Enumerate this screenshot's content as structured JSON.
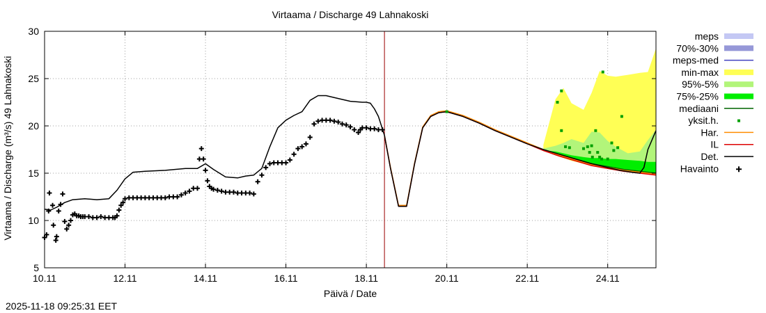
{
  "timestamp": "2025-11-18 09:25:31 EET",
  "chart_data": {
    "type": "line",
    "title": "Virtaama / Discharge  49 Lahnakoski",
    "xlabel": "Päivä / Date",
    "ylabel": "Virtaama / Discharge (m³/s)  49 Lahnakoski",
    "xlim": [
      10.0,
      25.2
    ],
    "ylim": [
      5,
      30
    ],
    "yticks": [
      5,
      10,
      15,
      20,
      25,
      30
    ],
    "xticks": [
      {
        "value": 10.0,
        "label": "10.11"
      },
      {
        "value": 12.0,
        "label": "12.11"
      },
      {
        "value": 14.0,
        "label": "14.11"
      },
      {
        "value": 16.0,
        "label": "16.11"
      },
      {
        "value": 18.0,
        "label": "18.11"
      },
      {
        "value": 20.0,
        "label": "20.11"
      },
      {
        "value": 22.0,
        "label": "22.11"
      },
      {
        "value": 24.0,
        "label": "24.11"
      }
    ],
    "grid": true,
    "now_line": 18.45,
    "legend": [
      {
        "label": "meps",
        "kind": "box",
        "color": "#c4c8f4"
      },
      {
        "label": "70%-30%",
        "kind": "box",
        "color": "#9698d8"
      },
      {
        "label": "meps-med",
        "kind": "line",
        "color": "#4040c0"
      },
      {
        "label": "min-max",
        "kind": "box",
        "color": "#ffff55"
      },
      {
        "label": "95%-5%",
        "kind": "box",
        "color": "#b2f57a"
      },
      {
        "label": "75%-25%",
        "kind": "box",
        "color": "#00ee00"
      },
      {
        "label": "mediaani",
        "kind": "line",
        "color": "#006400"
      },
      {
        "label": "yksit.h.",
        "kind": "dot",
        "color": "#00a000"
      },
      {
        "label": "Har.",
        "kind": "line",
        "color": "#ff8c00"
      },
      {
        "label": "IL",
        "kind": "line",
        "color": "#dd0000"
      },
      {
        "label": "Det.",
        "kind": "line",
        "color": "#000000"
      },
      {
        "label": "Havainto",
        "kind": "plus",
        "color": "#000000"
      }
    ],
    "series": [
      {
        "name": "Det.",
        "x": [
          10.0,
          10.15,
          10.3,
          10.5,
          10.7,
          11.0,
          11.3,
          11.6,
          11.8,
          12.0,
          12.2,
          12.5,
          13.0,
          13.5,
          13.8,
          14.0,
          14.2,
          14.5,
          14.8,
          15.0,
          15.2,
          15.4,
          15.6,
          15.8,
          16.0,
          16.2,
          16.4,
          16.6,
          16.8,
          17.0,
          17.3,
          17.6,
          17.9,
          18.0,
          18.1,
          18.2,
          18.3,
          18.45,
          18.6,
          18.8,
          19.0,
          19.2,
          19.4,
          19.6,
          19.8,
          20.0,
          20.4,
          20.8,
          21.2,
          21.6,
          22.0,
          22.4,
          22.8,
          23.2,
          23.6,
          24.0,
          24.3,
          24.6,
          24.8,
          24.9,
          25.0,
          25.2
        ],
        "values": [
          11.2,
          11.1,
          11.4,
          11.9,
          12.2,
          12.3,
          12.2,
          12.3,
          13.2,
          14.4,
          15.1,
          15.2,
          15.3,
          15.5,
          15.5,
          16.0,
          15.4,
          14.6,
          14.5,
          14.7,
          14.8,
          15.5,
          17.8,
          19.8,
          20.6,
          21.1,
          21.5,
          22.7,
          23.2,
          23.2,
          22.9,
          22.6,
          22.5,
          22.5,
          22.4,
          21.8,
          21.0,
          19.0,
          15.5,
          11.5,
          11.5,
          16.0,
          19.8,
          21.0,
          21.4,
          21.5,
          21.0,
          20.3,
          19.5,
          18.8,
          18.1,
          17.5,
          17.0,
          16.5,
          16.0,
          15.6,
          15.3,
          15.1,
          15.0,
          15.6,
          17.5,
          19.5
        ]
      },
      {
        "name": "IL",
        "x": [
          18.45,
          18.6,
          18.8,
          19.0,
          19.2,
          19.4,
          19.6,
          19.8,
          20.0,
          20.4,
          20.8,
          21.2,
          21.6,
          22.0,
          22.4,
          22.8,
          23.2,
          23.6,
          24.0,
          24.4,
          24.8,
          25.2
        ],
        "values": [
          19.0,
          15.5,
          11.5,
          11.5,
          16.0,
          19.8,
          21.0,
          21.4,
          21.5,
          21.0,
          20.3,
          19.5,
          18.8,
          18.1,
          17.4,
          16.8,
          16.3,
          15.8,
          15.5,
          15.2,
          15.0,
          14.8
        ]
      },
      {
        "name": "Har.",
        "x": [
          18.45,
          18.6,
          18.8,
          19.0,
          19.2,
          19.4,
          19.6,
          19.8,
          20.0,
          20.4,
          20.8,
          21.2,
          21.6,
          22.0,
          22.4,
          22.8,
          23.2,
          23.6,
          24.0,
          24.4,
          24.8,
          25.2
        ],
        "values": [
          19.0,
          15.6,
          11.6,
          11.6,
          16.1,
          19.9,
          21.1,
          21.5,
          21.6,
          21.1,
          20.4,
          19.6,
          18.9,
          18.2,
          17.5,
          16.9,
          16.4,
          15.9,
          15.6,
          15.3,
          15.1,
          14.9
        ]
      },
      {
        "name": "mediaani",
        "x": [
          22.4,
          22.8,
          23.2,
          23.6,
          24.0,
          24.4,
          24.8,
          25.2
        ],
        "values": [
          17.4,
          16.9,
          16.4,
          16.0,
          15.7,
          15.4,
          15.2,
          15.0
        ]
      }
    ],
    "bands": [
      {
        "name": "min-max",
        "x": [
          22.4,
          22.7,
          22.9,
          23.1,
          23.4,
          23.6,
          23.8,
          24.0,
          24.2,
          24.5,
          24.8,
          25.0,
          25.2
        ],
        "low": [
          17.4,
          16.9,
          16.6,
          16.3,
          16.0,
          15.9,
          15.7,
          15.5,
          15.3,
          15.1,
          15.0,
          14.9,
          14.8
        ],
        "high": [
          18.0,
          22.8,
          24.0,
          22.4,
          21.7,
          23.5,
          25.8,
          25.3,
          25.2,
          25.4,
          25.6,
          25.7,
          28.2
        ]
      },
      {
        "name": "95%-5%",
        "x": [
          22.4,
          22.7,
          22.9,
          23.1,
          23.4,
          23.6,
          23.8,
          24.0,
          24.2,
          24.5,
          24.8,
          25.0,
          25.2
        ],
        "low": [
          17.4,
          16.9,
          16.7,
          16.4,
          16.1,
          16.0,
          15.8,
          15.6,
          15.4,
          15.2,
          15.1,
          15.0,
          14.9
        ],
        "high": [
          17.6,
          17.9,
          18.2,
          18.6,
          18.2,
          19.4,
          19.3,
          18.4,
          17.8,
          17.1,
          17.3,
          18.5,
          19.6
        ]
      },
      {
        "name": "75%-25%",
        "x": [
          22.4,
          22.7,
          22.9,
          23.1,
          23.4,
          23.6,
          23.8,
          24.0,
          24.2,
          24.5,
          24.8,
          25.0,
          25.2
        ],
        "low": [
          17.4,
          16.9,
          16.7,
          16.5,
          16.2,
          16.0,
          15.9,
          15.7,
          15.5,
          15.3,
          15.2,
          15.0,
          14.9
        ],
        "high": [
          17.4,
          17.3,
          17.1,
          16.9,
          16.7,
          16.6,
          16.6,
          16.5,
          16.5,
          16.4,
          16.3,
          16.2,
          16.2
        ]
      }
    ],
    "scatter": {
      "name": "yksit.h.",
      "x": [
        20.0,
        22.75,
        22.85,
        22.85,
        22.95,
        23.05,
        23.4,
        23.5,
        23.55,
        23.6,
        23.62,
        23.7,
        23.75,
        23.8,
        23.85,
        23.88,
        24.0,
        24.1,
        24.15,
        24.25,
        24.35
      ],
      "y": [
        21.5,
        22.5,
        23.7,
        19.5,
        17.8,
        17.7,
        17.6,
        17.8,
        17.2,
        17.9,
        16.7,
        19.5,
        17.2,
        16.7,
        16.5,
        25.7,
        16.5,
        18.2,
        17.4,
        17.7,
        21.0
      ]
    },
    "observations": {
      "name": "Havainto",
      "x": [
        10.0,
        10.05,
        10.1,
        10.12,
        10.2,
        10.22,
        10.28,
        10.3,
        10.35,
        10.4,
        10.45,
        10.5,
        10.55,
        10.6,
        10.65,
        10.7,
        10.75,
        10.8,
        10.85,
        10.9,
        10.95,
        11.0,
        11.1,
        11.2,
        11.3,
        11.4,
        11.5,
        11.6,
        11.7,
        11.75,
        11.8,
        11.85,
        11.9,
        11.95,
        12.0,
        12.1,
        12.2,
        12.3,
        12.4,
        12.5,
        12.6,
        12.7,
        12.8,
        12.9,
        13.0,
        13.1,
        13.2,
        13.3,
        13.4,
        13.5,
        13.6,
        13.7,
        13.8,
        13.85,
        13.9,
        13.95,
        14.0,
        14.05,
        14.1,
        14.15,
        14.2,
        14.3,
        14.4,
        14.5,
        14.6,
        14.7,
        14.8,
        14.9,
        15.0,
        15.1,
        15.2,
        15.3,
        15.4,
        15.5,
        15.6,
        15.7,
        15.8,
        15.9,
        16.0,
        16.1,
        16.2,
        16.3,
        16.4,
        16.5,
        16.6,
        16.7,
        16.8,
        16.9,
        17.0,
        17.1,
        17.2,
        17.3,
        17.4,
        17.5,
        17.6,
        17.7,
        17.8,
        17.85,
        17.9,
        18.0,
        18.1,
        18.2,
        18.3,
        18.4
      ],
      "values": [
        8.2,
        8.5,
        11.0,
        12.9,
        11.6,
        9.5,
        7.9,
        8.3,
        11.0,
        11.7,
        12.8,
        9.9,
        9.1,
        9.5,
        10.0,
        10.6,
        10.7,
        10.5,
        10.5,
        10.4,
        10.4,
        10.4,
        10.4,
        10.3,
        10.3,
        10.4,
        10.3,
        10.3,
        10.3,
        10.3,
        10.5,
        11.1,
        11.6,
        11.9,
        12.3,
        12.4,
        12.4,
        12.4,
        12.4,
        12.4,
        12.4,
        12.4,
        12.4,
        12.4,
        12.4,
        12.5,
        12.5,
        12.5,
        12.7,
        12.9,
        13.1,
        13.4,
        13.4,
        16.5,
        17.6,
        16.5,
        15.3,
        14.2,
        13.6,
        13.4,
        13.3,
        13.2,
        13.1,
        13.0,
        13.0,
        13.0,
        12.9,
        12.9,
        12.9,
        12.9,
        12.8,
        14.1,
        14.8,
        15.6,
        16.0,
        16.1,
        16.1,
        16.1,
        16.1,
        16.4,
        17.0,
        17.6,
        17.8,
        18.1,
        18.8,
        20.2,
        20.5,
        20.6,
        20.6,
        20.6,
        20.5,
        20.4,
        20.2,
        20.1,
        19.9,
        19.6,
        19.3,
        19.6,
        19.8,
        19.8,
        19.7,
        19.7,
        19.6,
        19.6
      ]
    }
  }
}
